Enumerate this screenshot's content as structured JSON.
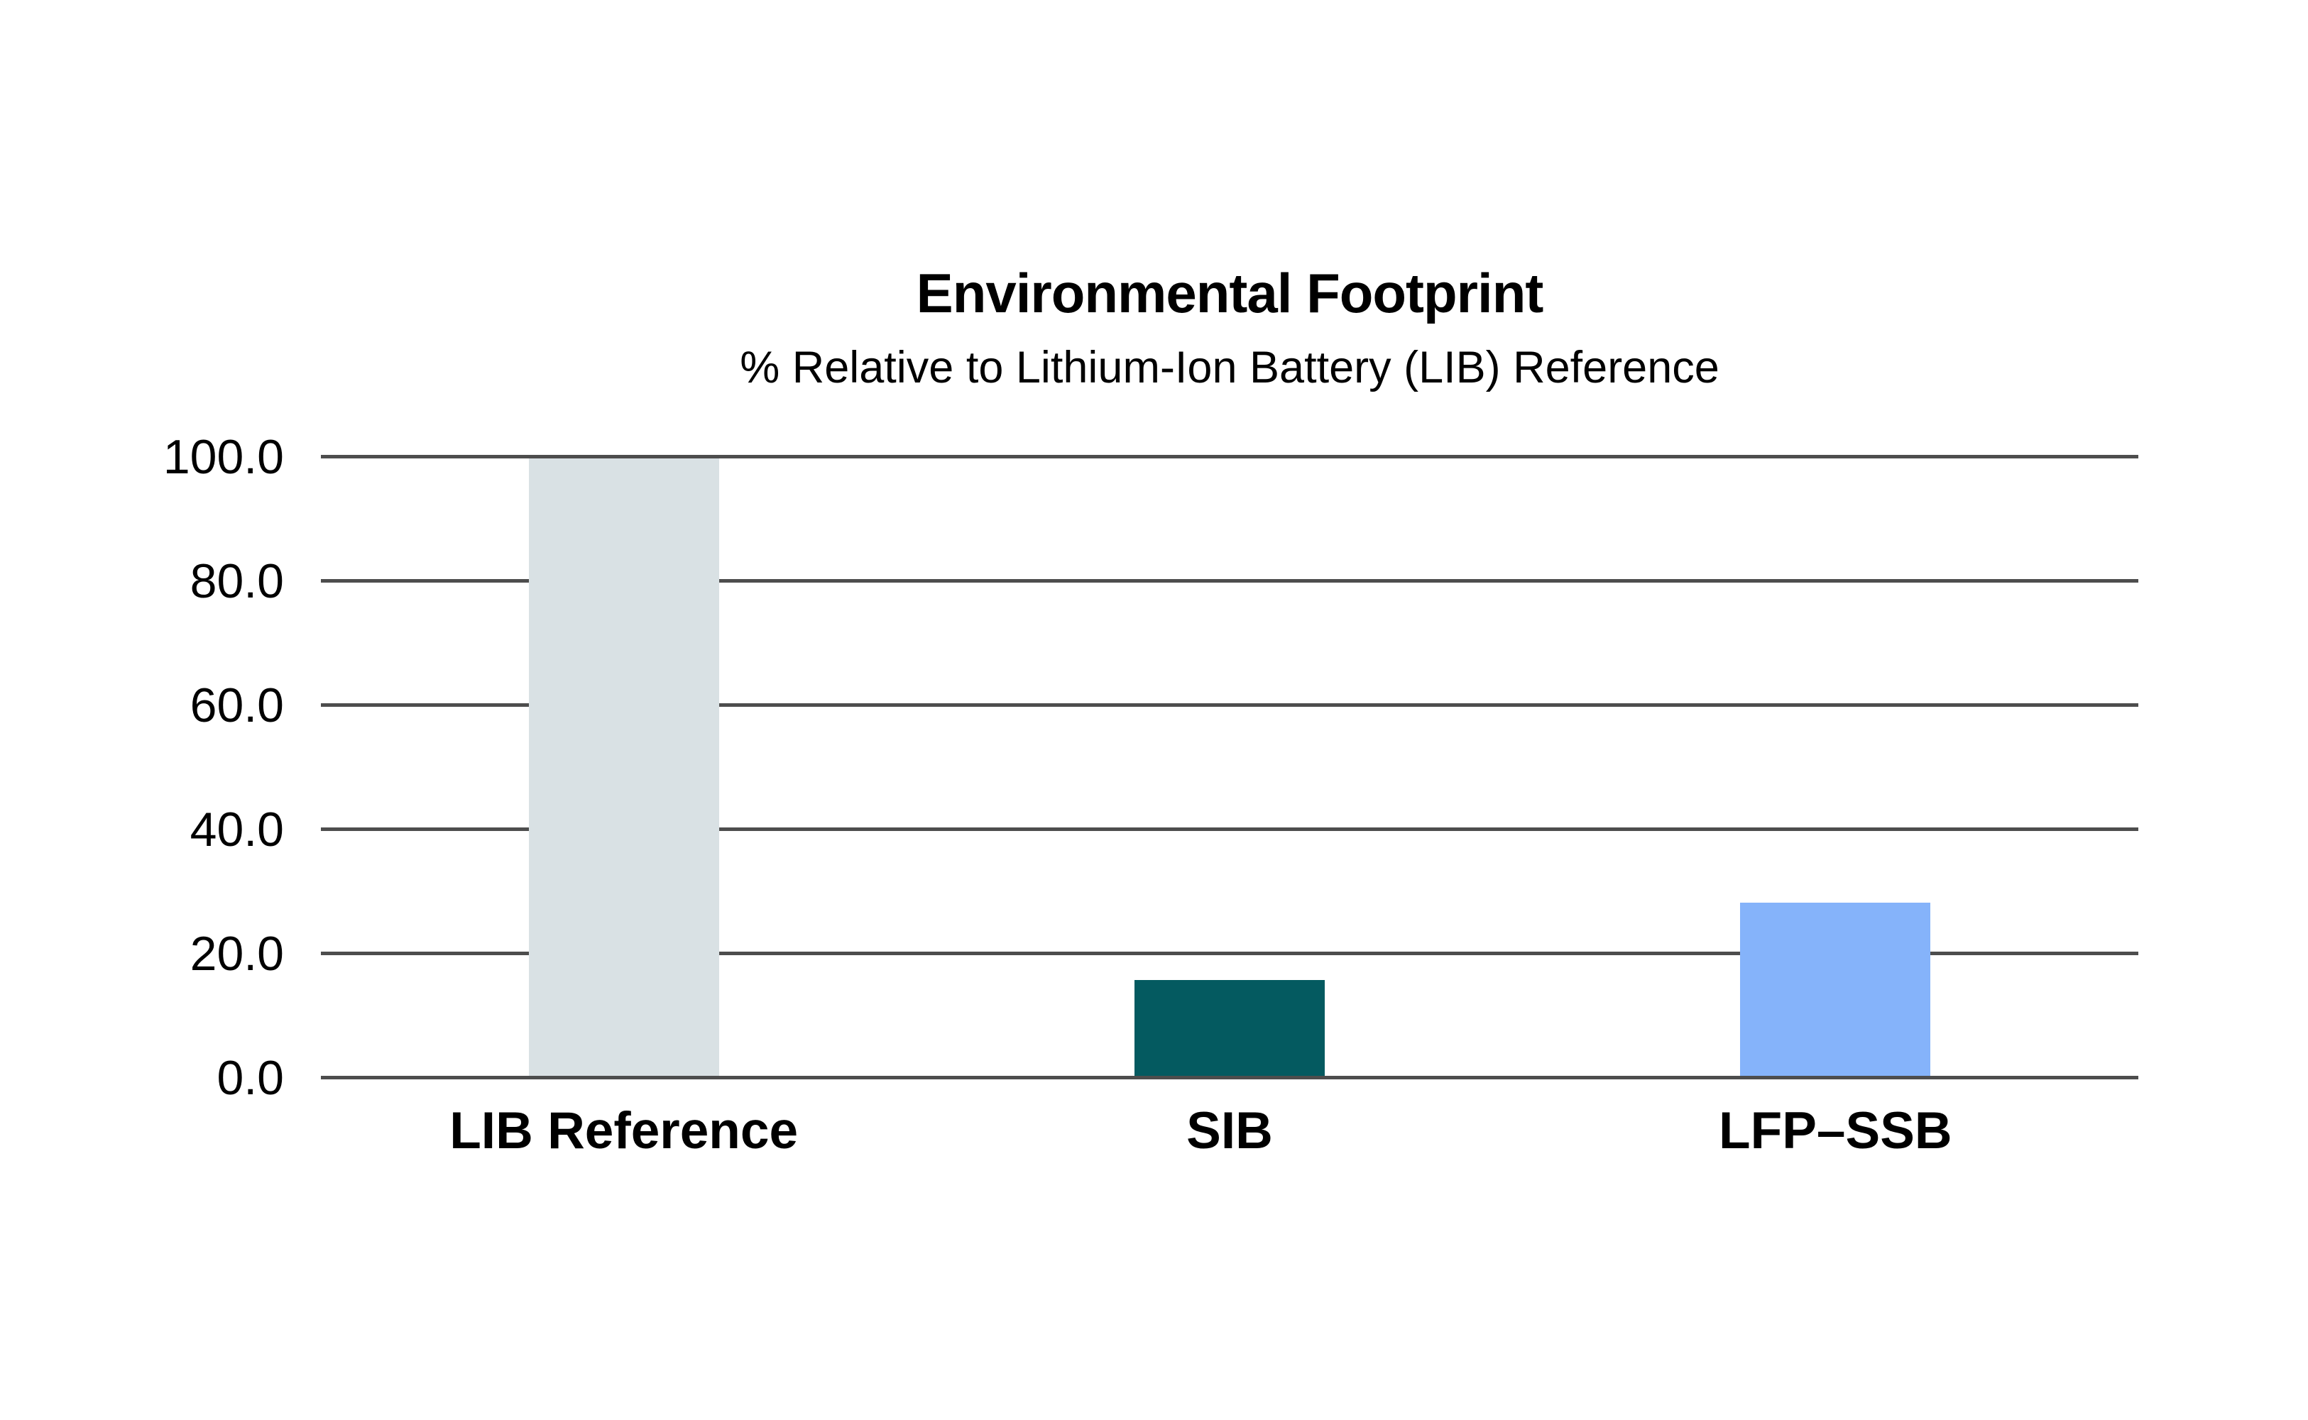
{
  "page": {
    "background_color": "#FFFFFF"
  },
  "chart_data": {
    "type": "bar",
    "title": "Environmental Footprint",
    "subtitle": "% Relative to Lithium-Ion Battery (LIB) Reference",
    "categories": [
      "LIB Reference",
      "SIB",
      "LFP–SSB"
    ],
    "values": [
      100.0,
      15.5,
      28.0
    ],
    "bar_colors": [
      "#D9E1E4",
      "#045A60",
      "#85B3FA"
    ],
    "xlabel": "",
    "ylabel": "",
    "ylim": [
      0,
      100
    ],
    "yticks": [
      0,
      20,
      40,
      60,
      80,
      100
    ],
    "ytick_labels": [
      "0.0",
      "20.0",
      "40.0",
      "60.0",
      "80.0",
      "100.0"
    ],
    "grid": "horizontal",
    "gridline_color": "#4D4D4D",
    "text_color": "#000000",
    "legend": "none"
  }
}
